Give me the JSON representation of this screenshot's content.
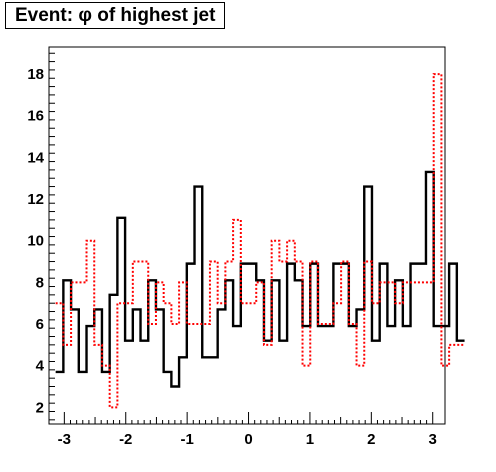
{
  "chart_data": {
    "type": "histogram",
    "title": "Event: φ of highest jet",
    "xlabel": "",
    "ylabel": "",
    "xlim": [
      -3.25,
      3.2
    ],
    "ylim": [
      1.2,
      19.3
    ],
    "x_ticks": [
      -3,
      -2,
      -1,
      0,
      1,
      2,
      3
    ],
    "x_tick_labels": [
      "-3",
      "-2",
      "-1",
      "0",
      "1",
      "2",
      "3"
    ],
    "y_ticks": [
      2,
      4,
      6,
      8,
      10,
      12,
      14,
      16,
      18
    ],
    "y_tick_labels": [
      "2",
      "4",
      "6",
      "8",
      "10",
      "12",
      "14",
      "16",
      "18"
    ],
    "bin_low": -3.14159,
    "bin_width": 0.12566,
    "series": [
      {
        "style": "solid",
        "color": "#000000",
        "values": [
          3.7,
          8.1,
          6.7,
          3.7,
          5.9,
          6.7,
          3.7,
          7.4,
          11.1,
          5.2,
          6.7,
          5.2,
          8.1,
          6.7,
          3.7,
          3.0,
          4.4,
          8.9,
          12.6,
          4.4,
          4.4,
          6.7,
          8.1,
          5.9,
          8.9,
          8.9,
          8.1,
          5.2,
          8.1,
          5.2,
          8.9,
          8.1,
          5.9,
          8.9,
          5.9,
          5.9,
          8.9,
          8.9,
          5.9,
          6.7,
          12.6,
          5.2,
          8.9,
          5.9,
          8.1,
          5.9,
          8.9,
          8.9,
          13.3,
          5.9,
          5.9,
          8.9,
          5.2
        ]
      },
      {
        "style": "dotted",
        "color": "#ff0000",
        "values": [
          7.0,
          5.0,
          8.0,
          8.0,
          10.0,
          5.0,
          4.0,
          2.0,
          7.0,
          7.0,
          9.0,
          9.0,
          6.0,
          8.0,
          7.0,
          6.0,
          8.0,
          6.0,
          6.0,
          6.0,
          9.0,
          7.0,
          9.0,
          11.0,
          7.0,
          7.0,
          8.0,
          5.0,
          10.0,
          9.0,
          10.0,
          9.0,
          4.0,
          9.0,
          6.0,
          6.0,
          7.0,
          9.0,
          6.0,
          4.0,
          9.0,
          7.0,
          8.0,
          8.0,
          7.0,
          8.0,
          8.0,
          8.0,
          8.0,
          18.0,
          4.0,
          5.0,
          5.0
        ]
      }
    ],
    "grid": false,
    "legend": "none"
  }
}
